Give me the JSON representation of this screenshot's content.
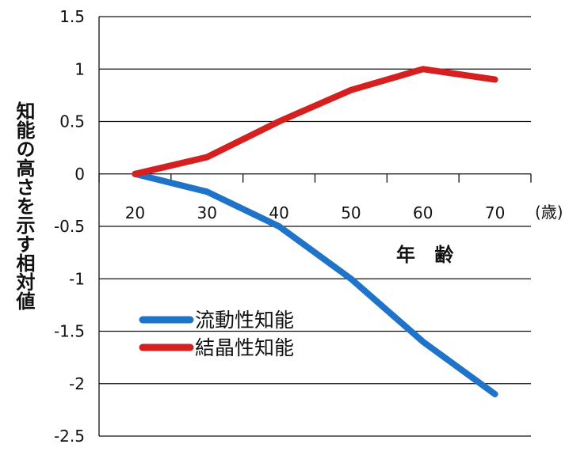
{
  "chart_data": {
    "type": "line",
    "x": [
      20,
      30,
      40,
      50,
      60,
      70
    ],
    "xlabel": "年 齢",
    "x_unit": "(歳)",
    "ylabel": "知能の高さを示す相対値",
    "ylim": [
      -2.5,
      1.5
    ],
    "y_ticks": [
      "1.5",
      "1",
      "0.5",
      "0",
      "-0.5",
      "-1",
      "-1.5",
      "-2",
      "-2.5"
    ],
    "x_ticks": [
      "20",
      "30",
      "40",
      "50",
      "60",
      "70"
    ],
    "grid": "horizontal",
    "legend_position": "center-left",
    "series": [
      {
        "name": "流動性知能",
        "color": "#1f73c8",
        "values": [
          0,
          -0.17,
          -0.5,
          -1.0,
          -1.6,
          -2.1
        ]
      },
      {
        "name": "結晶性知能",
        "color": "#d61f1f",
        "values": [
          0,
          0.16,
          0.5,
          0.8,
          1.0,
          0.9
        ]
      }
    ]
  }
}
